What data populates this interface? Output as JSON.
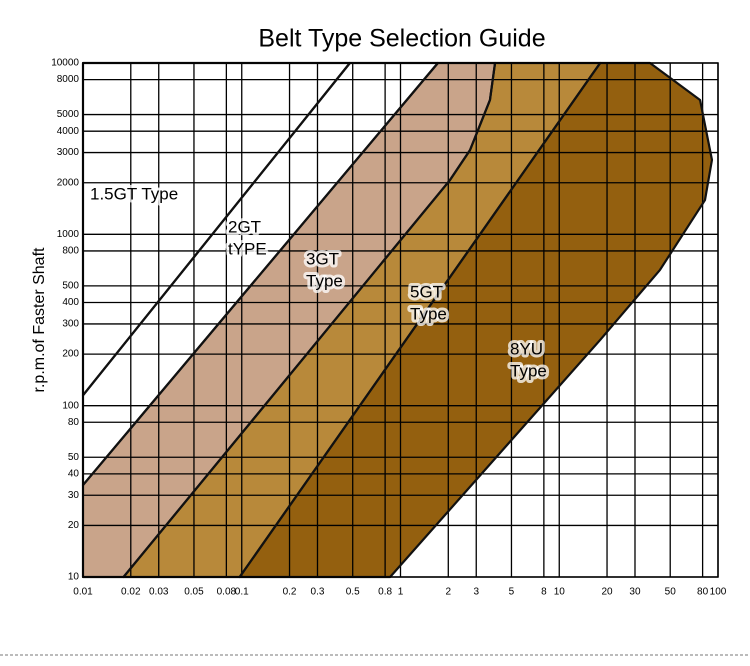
{
  "chart_data": {
    "type": "region",
    "title": "Belt Type Selection Guide",
    "ylabel": "r.p.m.of Faster Shaft",
    "xlog": true,
    "ylog": true,
    "grid": true,
    "xlim": [
      0.01,
      100
    ],
    "ylim": [
      10,
      10000
    ],
    "xticks": [
      0.01,
      0.02,
      0.03,
      0.05,
      0.08,
      0.1,
      0.2,
      0.3,
      0.5,
      0.8,
      1,
      2,
      3,
      5,
      8,
      10,
      20,
      30,
      50,
      80,
      100
    ],
    "yticks": [
      10,
      20,
      30,
      40,
      50,
      80,
      100,
      200,
      300,
      400,
      500,
      800,
      1000,
      2000,
      3000,
      4000,
      5000,
      8000,
      10000
    ],
    "series": [
      {
        "name": [
          "1.5GT Type"
        ],
        "color": "#ffffff",
        "x": [
          0.01,
          0.01,
          0.48
        ],
        "y": [
          115,
          10000,
          10000
        ]
      },
      {
        "name": [
          "2GT",
          "tYPE"
        ],
        "color": "#ffffff",
        "x": [
          0.01,
          0.48,
          1.72,
          0.01
        ],
        "y": [
          115,
          10000,
          10000,
          34.4
        ]
      },
      {
        "name": [
          "3GT",
          "Type"
        ],
        "color": "#c9a48a",
        "x": [
          0.01,
          1.72,
          3.94,
          3.66,
          2.74,
          2.05,
          0.018,
          0.01
        ],
        "y": [
          34.4,
          10000,
          10000,
          6080,
          3100,
          2075,
          10,
          10
        ]
      },
      {
        "name": [
          "5GT",
          "Type"
        ],
        "color": "#b8893a",
        "x": [
          0.018,
          2.05,
          2.74,
          3.66,
          3.94,
          18.1,
          0.097
        ],
        "y": [
          10,
          2075,
          3100,
          6080,
          10000,
          10000,
          10
        ]
      },
      {
        "name": [
          "8YU",
          "Type"
        ],
        "color": "#94600f",
        "x": [
          0.097,
          18.1,
          37.3,
          77.1,
          91.6,
          82.8,
          43.1,
          18.1,
          0.86
        ],
        "y": [
          10,
          10000,
          10000,
          6080,
          2720,
          1585,
          620,
          242,
          10
        ]
      }
    ]
  }
}
